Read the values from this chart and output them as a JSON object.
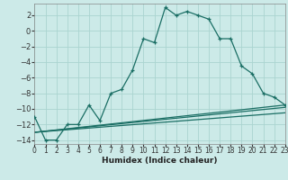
{
  "xlabel": "Humidex (Indice chaleur)",
  "background_color": "#cceae8",
  "grid_color": "#aad4d0",
  "line_color": "#1a6e64",
  "xlim": [
    0,
    23
  ],
  "ylim": [
    -14.5,
    3.5
  ],
  "yticks": [
    2,
    0,
    -2,
    -4,
    -6,
    -8,
    -10,
    -12,
    -14
  ],
  "xticks": [
    0,
    1,
    2,
    3,
    4,
    5,
    6,
    7,
    8,
    9,
    10,
    11,
    12,
    13,
    14,
    15,
    16,
    17,
    18,
    19,
    20,
    21,
    22,
    23
  ],
  "main_series_x": [
    0,
    1,
    2,
    3,
    4,
    5,
    6,
    7,
    8,
    9,
    10,
    11,
    12,
    13,
    14,
    15,
    16,
    17,
    18,
    19,
    20,
    21,
    22,
    23
  ],
  "main_series_y": [
    -11,
    -14,
    -14,
    -12,
    -12,
    -9.5,
    -11.5,
    -8,
    -7.5,
    -5,
    -1,
    -1.5,
    3,
    2,
    2.5,
    2,
    1.5,
    -1,
    -1,
    -4.5,
    -5.5,
    -8,
    -8.5,
    -9.5
  ],
  "straight_lines": [
    {
      "x": [
        0,
        23
      ],
      "y": [
        -13.0,
        -9.5
      ]
    },
    {
      "x": [
        0,
        23
      ],
      "y": [
        -13.0,
        -9.8
      ]
    },
    {
      "x": [
        0,
        23
      ],
      "y": [
        -13.0,
        -10.5
      ]
    }
  ],
  "xlabel_fontsize": 6.5,
  "tick_fontsize": 5.5,
  "linewidth": 0.9,
  "marker_size": 3.5
}
